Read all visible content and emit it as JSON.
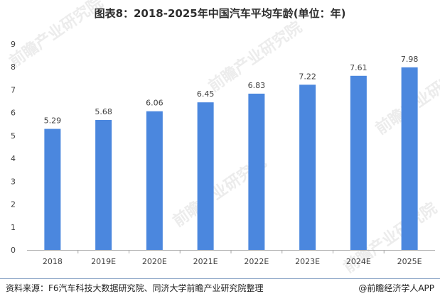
{
  "title": "图表8：2018-2025年中国汽车平均车龄(单位：年)",
  "source": "资料来源：F6汽车科技大数据研究院、同济大学前瞻产业研究院整理",
  "brand": "@前瞻经济学人APP",
  "watermark": "前瞻产业研究院",
  "colors": {
    "bar": "#4b87de",
    "axis": "#a6a6a6",
    "text": "#404040"
  },
  "chart_data": {
    "type": "bar",
    "categories": [
      "2018",
      "2019E",
      "2020E",
      "2021E",
      "2022E",
      "2023E",
      "2024E",
      "2025E"
    ],
    "values": [
      5.29,
      5.68,
      6.06,
      6.45,
      6.83,
      7.22,
      7.61,
      7.98
    ],
    "data_labels": [
      "5.29",
      "5.68",
      "6.06",
      "6.45",
      "6.83",
      "7.22",
      "7.61",
      "7.98"
    ],
    "yticks": [
      "0",
      "1",
      "2",
      "3",
      "4",
      "5",
      "6",
      "7",
      "8",
      "9"
    ],
    "ylim": [
      0,
      9
    ],
    "grid": false,
    "legend": "none"
  }
}
